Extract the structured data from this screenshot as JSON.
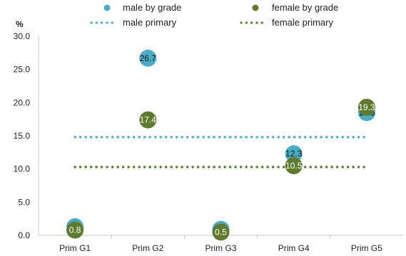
{
  "chart_data": {
    "type": "scatter",
    "y_unit": "%",
    "categories": [
      "Prim G1",
      "Prim G2",
      "Prim G3",
      "Prim G4",
      "Prim G5"
    ],
    "ylim": [
      0,
      30
    ],
    "yticks": [
      "0.0",
      "5.0",
      "10.0",
      "15.0",
      "20.0",
      "25.0",
      "30.0"
    ],
    "grid": false,
    "legend_position": "top",
    "series": [
      {
        "name": "male by grade",
        "kind": "points",
        "color": "#4BACC6",
        "values": [
          1.3,
          26.7,
          0.9,
          12.3,
          18.5
        ],
        "labels": [
          "1.3",
          "26.7",
          "0.9",
          "12.3",
          "18.5"
        ]
      },
      {
        "name": "female by grade",
        "kind": "points",
        "color": "#5E7A2F",
        "values": [
          0.8,
          17.4,
          0.5,
          10.5,
          19.3
        ],
        "labels": [
          "0.8",
          "17.4",
          "0.5",
          "10.5",
          "19.3"
        ]
      },
      {
        "name": "male primary",
        "kind": "dotted-line",
        "color": "#4BACC6",
        "value": 14.8
      },
      {
        "name": "female primary",
        "kind": "dotted-line",
        "color": "#5E7A2F",
        "value": 10.3
      }
    ]
  }
}
